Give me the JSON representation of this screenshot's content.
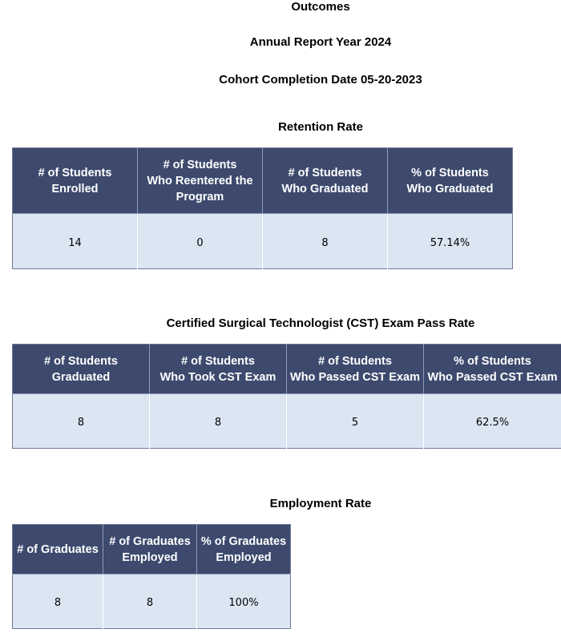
{
  "header": {
    "title": "Outcomes",
    "report_year": "Annual Report Year 2024",
    "cohort": "Cohort Completion Date 05-20-2023"
  },
  "retention": {
    "title": "Retention Rate",
    "columns": [
      [
        "# of Students",
        "Enrolled"
      ],
      [
        "# of Students",
        "Who Reentered the",
        "Program"
      ],
      [
        "# of Students",
        "Who Graduated"
      ],
      [
        "% of Students",
        "Who Graduated"
      ]
    ],
    "values": [
      "14",
      "0",
      "8",
      "57.14%"
    ]
  },
  "cst": {
    "title": "Certified Surgical Technologist (CST) Exam Pass Rate",
    "columns": [
      [
        "# of Students",
        "Graduated"
      ],
      [
        "# of Students",
        "Who Took CST Exam"
      ],
      [
        "# of Students",
        "Who Passed CST Exam"
      ],
      [
        "% of Students",
        "Who Passed CST Exam"
      ]
    ],
    "values": [
      "8",
      "8",
      "5",
      "62.5%"
    ]
  },
  "employment": {
    "title": "Employment Rate",
    "columns": [
      [
        "# of Graduates"
      ],
      [
        "# of Graduates",
        "Employed"
      ],
      [
        "% of Graduates",
        "Employed"
      ]
    ],
    "values": [
      "8",
      "8",
      "100%"
    ]
  }
}
